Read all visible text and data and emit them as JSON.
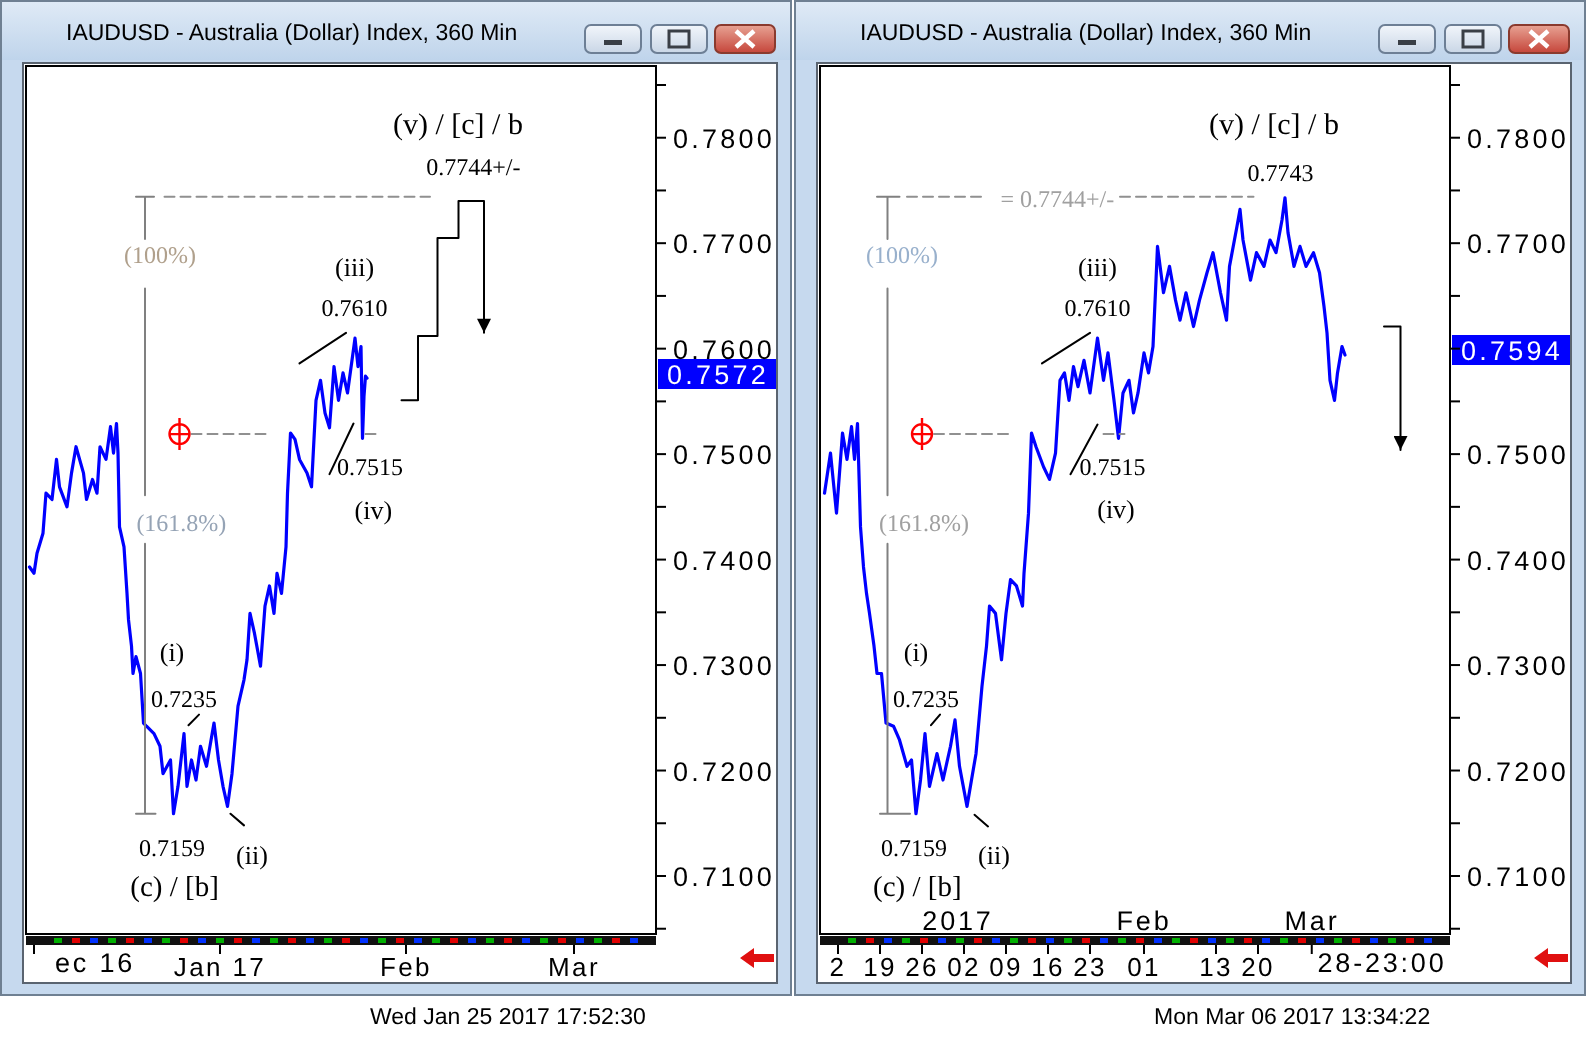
{
  "chart_data": [
    {
      "type": "line",
      "title": "IAUDUSD - Australia (Dollar) Index, 360 Min",
      "series": [
        {
          "color": "#0000ff",
          "x": [
            "2016-11-30T06:00",
            "2016-12-01T00:00",
            "2016-12-01T12:00",
            "2016-12-02T12:00",
            "2016-12-03T00:00",
            "2016-12-04T00:00",
            "2016-12-04T18:00",
            "2016-12-05T06:00",
            "2016-12-06T12:00",
            "2016-12-07T06:00",
            "2016-12-08T00:00",
            "2016-12-09T06:00",
            "2016-12-09T18:00",
            "2016-12-10T18:00",
            "2016-12-11T12:00",
            "2016-12-12T00:00",
            "2016-12-13T00:00",
            "2016-12-13T18:00",
            "2016-12-14T06:00",
            "2016-12-14T18:00",
            "2016-12-15T00:00",
            "2016-12-15T06:00",
            "2016-12-16T00:00",
            "2016-12-16T12:00",
            "2016-12-16T18:00",
            "2016-12-17T06:00",
            "2016-12-17T12:00",
            "2016-12-18T00:00",
            "2016-12-18T18:00",
            "2016-12-19T06:00",
            "2016-12-19T18:00",
            "2016-12-21T00:00",
            "2016-12-22T00:00",
            "2016-12-22T12:00",
            "2016-12-23T18:00",
            "2016-12-24T06:00",
            "2016-12-25T00:00",
            "2016-12-26T00:00",
            "2016-12-26T12:00",
            "2016-12-27T06:00",
            "2016-12-28T00:00",
            "2016-12-28T18:00",
            "2016-12-29T18:00",
            "2016-12-31T00:00",
            "2016-12-31T18:00",
            "2017-01-01T12:00",
            "2017-01-02T06:00",
            "2017-01-03T00:00",
            "2017-01-03T12:00",
            "2017-01-04T00:00",
            "2017-01-05T00:00",
            "2017-01-05T12:00",
            "2017-01-06T00:00",
            "2017-01-06T18:00",
            "2017-01-07T18:00",
            "2017-01-08T12:00",
            "2017-01-09T06:00",
            "2017-01-10T00:00",
            "2017-01-10T12:00",
            "2017-01-11T06:00",
            "2017-01-12T00:00",
            "2017-01-12T06:00",
            "2017-01-12T18:00",
            "2017-01-13T12:00",
            "2017-01-14T06:00",
            "2017-01-15T12:00",
            "2017-01-16T06:00",
            "2017-01-17T00:00",
            "2017-01-17T18:00",
            "2017-01-18T12:00",
            "2017-01-19T06:00",
            "2017-01-20T00:00",
            "2017-01-20T18:00",
            "2017-01-21T12:00",
            "2017-01-22T06:00",
            "2017-01-23T00:00",
            "2017-01-23T12:00",
            "2017-01-24T00:00",
            "2017-01-24T12:00",
            "2017-01-24T18:00",
            "2017-01-25T00:00",
            "2017-01-25T06:00",
            "2017-01-25T12:00"
          ],
          "values": [
            0.7393,
            0.7387,
            0.7406,
            0.7425,
            0.7463,
            0.7457,
            0.7495,
            0.7469,
            0.745,
            0.7482,
            0.7507,
            0.7482,
            0.7457,
            0.7476,
            0.7463,
            0.7507,
            0.7495,
            0.7526,
            0.7501,
            0.7529,
            0.7501,
            0.7431,
            0.7412,
            0.7368,
            0.7343,
            0.7318,
            0.7292,
            0.7308,
            0.7292,
            0.7245,
            0.7242,
            0.7235,
            0.7223,
            0.7197,
            0.721,
            0.7159,
            0.7185,
            0.7235,
            0.7185,
            0.721,
            0.7191,
            0.7223,
            0.7204,
            0.7245,
            0.721,
            0.7185,
            0.7166,
            0.7197,
            0.7229,
            0.7261,
            0.7286,
            0.7305,
            0.7349,
            0.733,
            0.7299,
            0.7356,
            0.7375,
            0.7349,
            0.7387,
            0.7368,
            0.7412,
            0.7463,
            0.752,
            0.7514,
            0.7495,
            0.7482,
            0.7469,
            0.7551,
            0.757,
            0.7539,
            0.7525,
            0.7583,
            0.7551,
            0.7577,
            0.7558,
            0.7589,
            0.761,
            0.7583,
            0.7602,
            0.7515,
            0.7555,
            0.7574,
            0.7572
          ]
        },
        {
          "type": "step",
          "color": "#000000",
          "x": [
            "2017-01-31T06:00",
            "2017-02-03T00:00",
            "2017-02-06T06:00",
            "2017-02-09T18:00",
            "2017-02-14T00:00"
          ],
          "values": [
            0.7551,
            0.7612,
            0.7705,
            0.774,
            0.7615
          ]
        },
        {
          "color": "#808080",
          "x": [
            "2016-12-18T00:00",
            "2016-12-21T00:00",
            "2016-12-19T12:00",
            "2016-12-19T12:00",
            null,
            "2016-12-19T12:00",
            "2016-12-19T12:00",
            null,
            "2016-12-19T12:00",
            "2016-12-19T12:00",
            "2016-12-18T00:00",
            "2016-12-21T06:00"
          ],
          "values": [
            0.7744,
            0.7744,
            0.7744,
            0.7704,
            null,
            0.7657,
            0.7461,
            null,
            0.7415,
            0.7159,
            0.7159,
            0.7159
          ]
        },
        {
          "color": "#909090",
          "line_style": "dashed",
          "x": [
            "2016-12-22T18:00",
            "2017-02-05T00:00"
          ],
          "values": [
            0.7744,
            0.7744
          ]
        },
        {
          "color": "#909090",
          "line_style": "dashed",
          "x": [
            "2016-12-27T06:00",
            "2017-01-08T18:00",
            null,
            "2017-01-25T06:00",
            "2017-01-27T18:00"
          ],
          "values": [
            0.7519,
            0.7519,
            null,
            0.7519,
            0.7519
          ]
        },
        {
          "color": "#000000",
          "x": [
            "2017-01-14T06:00",
            "2017-01-22T00:00",
            null,
            "2017-01-19T06:00",
            "2017-01-23T06:00",
            null,
            "2016-12-26T18:00",
            "2016-12-28T12:00",
            null,
            "2017-01-02T18:00",
            "2017-01-05T00:00"
          ],
          "values": [
            0.7586,
            0.7615,
            null,
            0.7481,
            0.7529,
            null,
            0.7243,
            0.7253,
            null,
            0.7159,
            0.7148
          ]
        },
        {
          "type": "scatter",
          "color": "#ff0000",
          "marker": "cross",
          "x": [
            "2016-12-25T06:00"
          ],
          "values": [
            0.7519
          ]
        }
      ],
      "xlim": [
        "2016-11-29T16:00",
        "2017-03-14T16:00"
      ],
      "xticks": [
        {
          "value": "2016-12-01",
          "label": null
        },
        {
          "value": "2017-01-01",
          "label": "Jan 17"
        },
        {
          "value": "2017-02-01",
          "label": "Feb"
        },
        {
          "value": "2017-03-01",
          "label": "Mar"
        }
      ],
      "ylim": [
        0.7045,
        0.7868
      ],
      "yticks": [
        {
          "value": 0.705,
          "label": null
        },
        {
          "value": 0.71,
          "label": "0.7100"
        },
        {
          "value": 0.715,
          "label": null
        },
        {
          "value": 0.72,
          "label": "0.7200"
        },
        {
          "value": 0.725,
          "label": null
        },
        {
          "value": 0.73,
          "label": "0.7300"
        },
        {
          "value": 0.735,
          "label": null
        },
        {
          "value": 0.74,
          "label": "0.7400"
        },
        {
          "value": 0.745,
          "label": null
        },
        {
          "value": 0.75,
          "label": "0.7500"
        },
        {
          "value": 0.755,
          "label": null
        },
        {
          "value": 0.76,
          "label": "0.7600"
        },
        {
          "value": 0.765,
          "label": null
        },
        {
          "value": 0.77,
          "label": "0.7700"
        },
        {
          "value": 0.775,
          "label": null
        },
        {
          "value": 0.78,
          "label": "0.7800"
        },
        {
          "value": 0.785,
          "label": null
        }
      ],
      "annotations": [
        "(v) / [c] / b",
        "0.7744+/-",
        {
          "text": "(100%)",
          "x": "2016-12-19T12:00",
          "y": 0.7704
        },
        {
          "text": "(161.8%)",
          "x": "2016-12-19T12:00",
          "y": 0.7461
        },
        "(iii)",
        "0.7610",
        "0.7515",
        "(iv)",
        "(i)",
        "0.7235",
        "0.7159",
        "(c) / [b]",
        "(ii)",
        "0.7572",
        "ec 16",
        "Wed Jan 25 2017 17:52:30"
      ]
    },
    {
      "type": "line",
      "title": "IAUDUSD - Australia (Dollar) Index, 360 Min",
      "series": [
        {
          "color": "#0000ff",
          "x": [
            "2016-12-09T18:00",
            "2016-12-10T18:00",
            "2016-12-11T18:00",
            "2016-12-12T18:00",
            "2016-12-13T12:00",
            "2016-12-14T06:00",
            "2016-12-14T18:00",
            "2016-12-15T06:00",
            "2016-12-15T18:00",
            "2016-12-16T06:00",
            "2016-12-16T18:00",
            "2016-12-17T06:00",
            "2016-12-18T00:00",
            "2016-12-18T12:00",
            "2016-12-19T06:00",
            "2016-12-20T00:00",
            "2016-12-21T06:00",
            "2016-12-22T06:00",
            "2016-12-23T12:00",
            "2016-12-24T06:00",
            "2016-12-25T00:00",
            "2016-12-25T18:00",
            "2016-12-26T12:00",
            "2016-12-27T06:00",
            "2016-12-28T12:00",
            "2016-12-29T12:00",
            "2016-12-30T18:00",
            "2016-12-31T12:00",
            "2017-01-01T06:00",
            "2017-01-02T12:00",
            "2017-01-03T06:00",
            "2017-01-04T00:00",
            "2017-01-05T00:00",
            "2017-01-05T18:00",
            "2017-01-06T06:00",
            "2017-01-07T06:00",
            "2017-01-08T06:00",
            "2017-01-09T00:00",
            "2017-01-09T18:00",
            "2017-01-10T18:00",
            "2017-01-11T18:00",
            "2017-01-12T00:00",
            "2017-01-12T18:00",
            "2017-01-13T06:00",
            "2017-01-14T00:00",
            "2017-01-15T06:00",
            "2017-01-16T06:00",
            "2017-01-17T06:00",
            "2017-01-18T00:00",
            "2017-01-18T18:00",
            "2017-01-19T12:00",
            "2017-01-20T06:00",
            "2017-01-21T00:00",
            "2017-01-22T00:00",
            "2017-01-23T00:00",
            "2017-01-24T06:00",
            "2017-01-25T06:00",
            "2017-01-26T00:00",
            "2017-01-27T00:00",
            "2017-01-27T18:00",
            "2017-01-28T12:00",
            "2017-01-29T12:00",
            "2017-01-30T06:00",
            "2017-01-31T00:00",
            "2017-02-01T00:00",
            "2017-02-01T18:00",
            "2017-02-02T12:00",
            "2017-02-03T00:00",
            "2017-02-03T06:00",
            "2017-02-04T06:00",
            "2017-02-05T06:00",
            "2017-02-06T06:00",
            "2017-02-07T00:00",
            "2017-02-08T00:00",
            "2017-02-09T06:00",
            "2017-02-10T06:00",
            "2017-02-11T12:00",
            "2017-02-12T12:00",
            "2017-02-13T18:00",
            "2017-02-14T18:00",
            "2017-02-15T06:00",
            "2017-02-16T12:00",
            "2017-02-17T00:00",
            "2017-02-17T12:00",
            "2017-02-18T18:00",
            "2017-02-19T18:00",
            "2017-02-21T00:00",
            "2017-02-22T00:00",
            "2017-02-23T00:00",
            "2017-02-24T00:00",
            "2017-02-24T12:00",
            "2017-02-25T00:00",
            "2017-02-26T00:00",
            "2017-02-27T00:00",
            "2017-02-28T00:00",
            "2017-03-01T06:00",
            "2017-03-02T06:00",
            "2017-03-03T00:00",
            "2017-03-03T12:00",
            "2017-03-04T00:00",
            "2017-03-04T18:00",
            "2017-03-05T06:00",
            "2017-03-06T00:00",
            "2017-03-06T12:00"
          ],
          "values": [
            0.7463,
            0.7501,
            0.7444,
            0.752,
            0.7495,
            0.7526,
            0.7495,
            0.7529,
            0.7431,
            0.7393,
            0.7368,
            0.7349,
            0.7318,
            0.7292,
            0.7292,
            0.7245,
            0.7242,
            0.7229,
            0.7204,
            0.721,
            0.7159,
            0.7191,
            0.7235,
            0.7185,
            0.7216,
            0.7191,
            0.7223,
            0.7248,
            0.7204,
            0.7166,
            0.7191,
            0.7216,
            0.728,
            0.7318,
            0.7356,
            0.7349,
            0.7305,
            0.7349,
            0.7381,
            0.7375,
            0.7356,
            0.7387,
            0.7444,
            0.752,
            0.7507,
            0.7488,
            0.7476,
            0.7501,
            0.757,
            0.7577,
            0.7551,
            0.7583,
            0.7564,
            0.7589,
            0.7558,
            0.761,
            0.757,
            0.7596,
            0.7551,
            0.7515,
            0.7558,
            0.757,
            0.7539,
            0.7558,
            0.7596,
            0.7577,
            0.7602,
            0.7665,
            0.7697,
            0.7653,
            0.7678,
            0.7646,
            0.7627,
            0.7653,
            0.7621,
            0.7646,
            0.7672,
            0.7691,
            0.7653,
            0.7627,
            0.7678,
            0.7716,
            0.7732,
            0.7703,
            0.7665,
            0.7691,
            0.7678,
            0.7703,
            0.7691,
            0.7722,
            0.7743,
            0.771,
            0.7678,
            0.7697,
            0.7678,
            0.7691,
            0.7672,
            0.764,
            0.7615,
            0.757,
            0.7551,
            0.7577,
            0.7602,
            0.7594
          ]
        },
        {
          "type": "step",
          "color": "#000000",
          "x": [
            "2017-03-13T00:00",
            "2017-03-15T18:00"
          ],
          "values": [
            0.7621,
            0.7504
          ]
        },
        {
          "color": "#808080",
          "x": [
            "2016-12-18T12:00",
            "2016-12-22T06:00",
            "2016-12-20T06:00",
            "2016-12-20T06:00",
            null,
            "2016-12-20T06:00",
            "2016-12-20T06:00",
            null,
            "2016-12-20T06:00",
            "2016-12-20T06:00",
            "2016-12-19T00:00",
            "2016-12-24T00:00"
          ],
          "values": [
            0.7744,
            0.7744,
            0.7744,
            0.7704,
            null,
            0.7657,
            0.7461,
            null,
            0.7415,
            0.7159,
            0.7159,
            0.7159
          ]
        },
        {
          "color": "#909090",
          "line_style": "dashed",
          "x": [
            "2016-12-23T12:00",
            "2017-01-05T00:00",
            null,
            "2017-01-28T00:00",
            "2017-02-19T06:00"
          ],
          "values": [
            0.7744,
            0.7744,
            null,
            0.7744,
            0.7744
          ]
        },
        {
          "color": "#909090",
          "line_style": "dashed",
          "x": [
            "2016-12-28T00:00",
            "2017-01-09T18:00",
            null,
            "2017-01-25T06:00",
            "2017-01-28T18:00"
          ],
          "values": [
            0.7519,
            0.7519,
            null,
            0.7519,
            0.7519
          ]
        },
        {
          "color": "#000000",
          "x": [
            "2017-01-15T00:00",
            "2017-01-23T00:00",
            null,
            "2017-01-19T18:00",
            "2017-01-24T06:00",
            null,
            "2016-12-27T12:00",
            "2016-12-29T00:00",
            null,
            "2017-01-03T18:00",
            "2017-01-06T00:00"
          ],
          "values": [
            0.7586,
            0.7615,
            null,
            0.7481,
            0.7528,
            null,
            0.7243,
            0.7253,
            null,
            0.7158,
            0.7147
          ]
        },
        {
          "type": "scatter",
          "color": "#ff0000",
          "marker": "cross",
          "x": [
            "2016-12-26T00:00"
          ],
          "values": [
            0.7519
          ]
        }
      ],
      "xlim": [
        "2016-12-09",
        "2017-03-24"
      ],
      "xticks": [
        {
          "value": "2016-12-12",
          "label": "2"
        },
        {
          "value": "2016-12-19",
          "label": "19"
        },
        {
          "value": "2016-12-26",
          "label": "26"
        },
        {
          "value": "2017-01-02",
          "label": "02"
        },
        {
          "value": "2017-01-09",
          "label": "09"
        },
        {
          "value": "2017-01-16",
          "label": "16"
        },
        {
          "value": "2017-01-23",
          "label": "23"
        },
        {
          "value": "2017-02-01",
          "label": "01"
        },
        {
          "value": "2017-02-13",
          "label": "13"
        },
        {
          "value": "2017-02-20",
          "label": "20"
        },
        {
          "value": "2017-02-28T23:00",
          "label": null
        }
      ],
      "x2lim": [
        "2016-12-09",
        "2017-03-24"
      ],
      "x2ticks": [
        {
          "value": "2017-01-01",
          "label": "2017"
        },
        {
          "value": "2017-02-01",
          "label": "Feb"
        },
        {
          "value": "2017-03-01",
          "label": "Mar"
        }
      ],
      "ylim": [
        0.7045,
        0.7868
      ],
      "yticks": [
        {
          "value": 0.705,
          "label": null
        },
        {
          "value": 0.71,
          "label": "0.7100"
        },
        {
          "value": 0.715,
          "label": null
        },
        {
          "value": 0.72,
          "label": "0.7200"
        },
        {
          "value": 0.725,
          "label": null
        },
        {
          "value": 0.73,
          "label": "0.7300"
        },
        {
          "value": 0.735,
          "label": null
        },
        {
          "value": 0.74,
          "label": "0.7400"
        },
        {
          "value": 0.745,
          "label": null
        },
        {
          "value": 0.75,
          "label": "0.7500"
        },
        {
          "value": 0.755,
          "label": null
        },
        {
          "value": 0.76,
          "label": null
        },
        {
          "value": 0.765,
          "label": null
        },
        {
          "value": 0.77,
          "label": "0.7700"
        },
        {
          "value": 0.775,
          "label": null
        },
        {
          "value": 0.78,
          "label": "0.7800"
        },
        {
          "value": 0.785,
          "label": null
        }
      ],
      "annotations": [
        "(v) / [c] / b",
        "0.7743",
        "= 0.7744+/-",
        {
          "text": "(100%)",
          "x": "2016-12-20T06:00",
          "y": 0.7704
        },
        {
          "text": "(161.8%)",
          "x": "2016-12-20T06:00",
          "y": 0.7461
        },
        "(iii)",
        "0.7610",
        "0.7515",
        "(iv)",
        "(i)",
        "0.7235",
        "0.7159",
        "(c) / [b]",
        "(ii)",
        "0.7594",
        "28-23:00",
        "Mon Mar 06 2017 13:34:22"
      ]
    }
  ]
}
